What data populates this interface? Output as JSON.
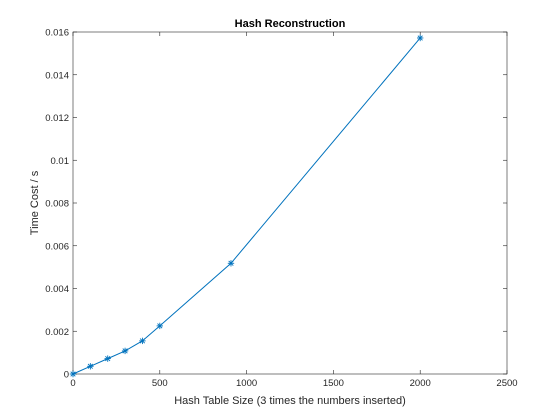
{
  "chart_data": {
    "type": "line",
    "title": "Hash Reconstruction",
    "xlabel": "Hash Table Size (3 times the numbers inserted)",
    "ylabel": "Time Cost / s",
    "xlim": [
      0,
      2500
    ],
    "ylim": [
      0,
      0.016
    ],
    "xticks": [
      "0",
      "500",
      "1000",
      "1500",
      "2000",
      "2500"
    ],
    "yticks": [
      "0",
      "0.002",
      "0.004",
      "0.006",
      "0.008",
      "0.01",
      "0.012",
      "0.014",
      "0.016"
    ],
    "grid": false,
    "marker": "asterisk",
    "series": [
      {
        "color": "#0072BD",
        "x": [
          0,
          100,
          200,
          300,
          400,
          500,
          910,
          2000
        ],
        "y": [
          0.0,
          0.00036,
          0.00072,
          0.00108,
          0.00155,
          0.00225,
          0.00518,
          0.01572
        ]
      }
    ]
  }
}
